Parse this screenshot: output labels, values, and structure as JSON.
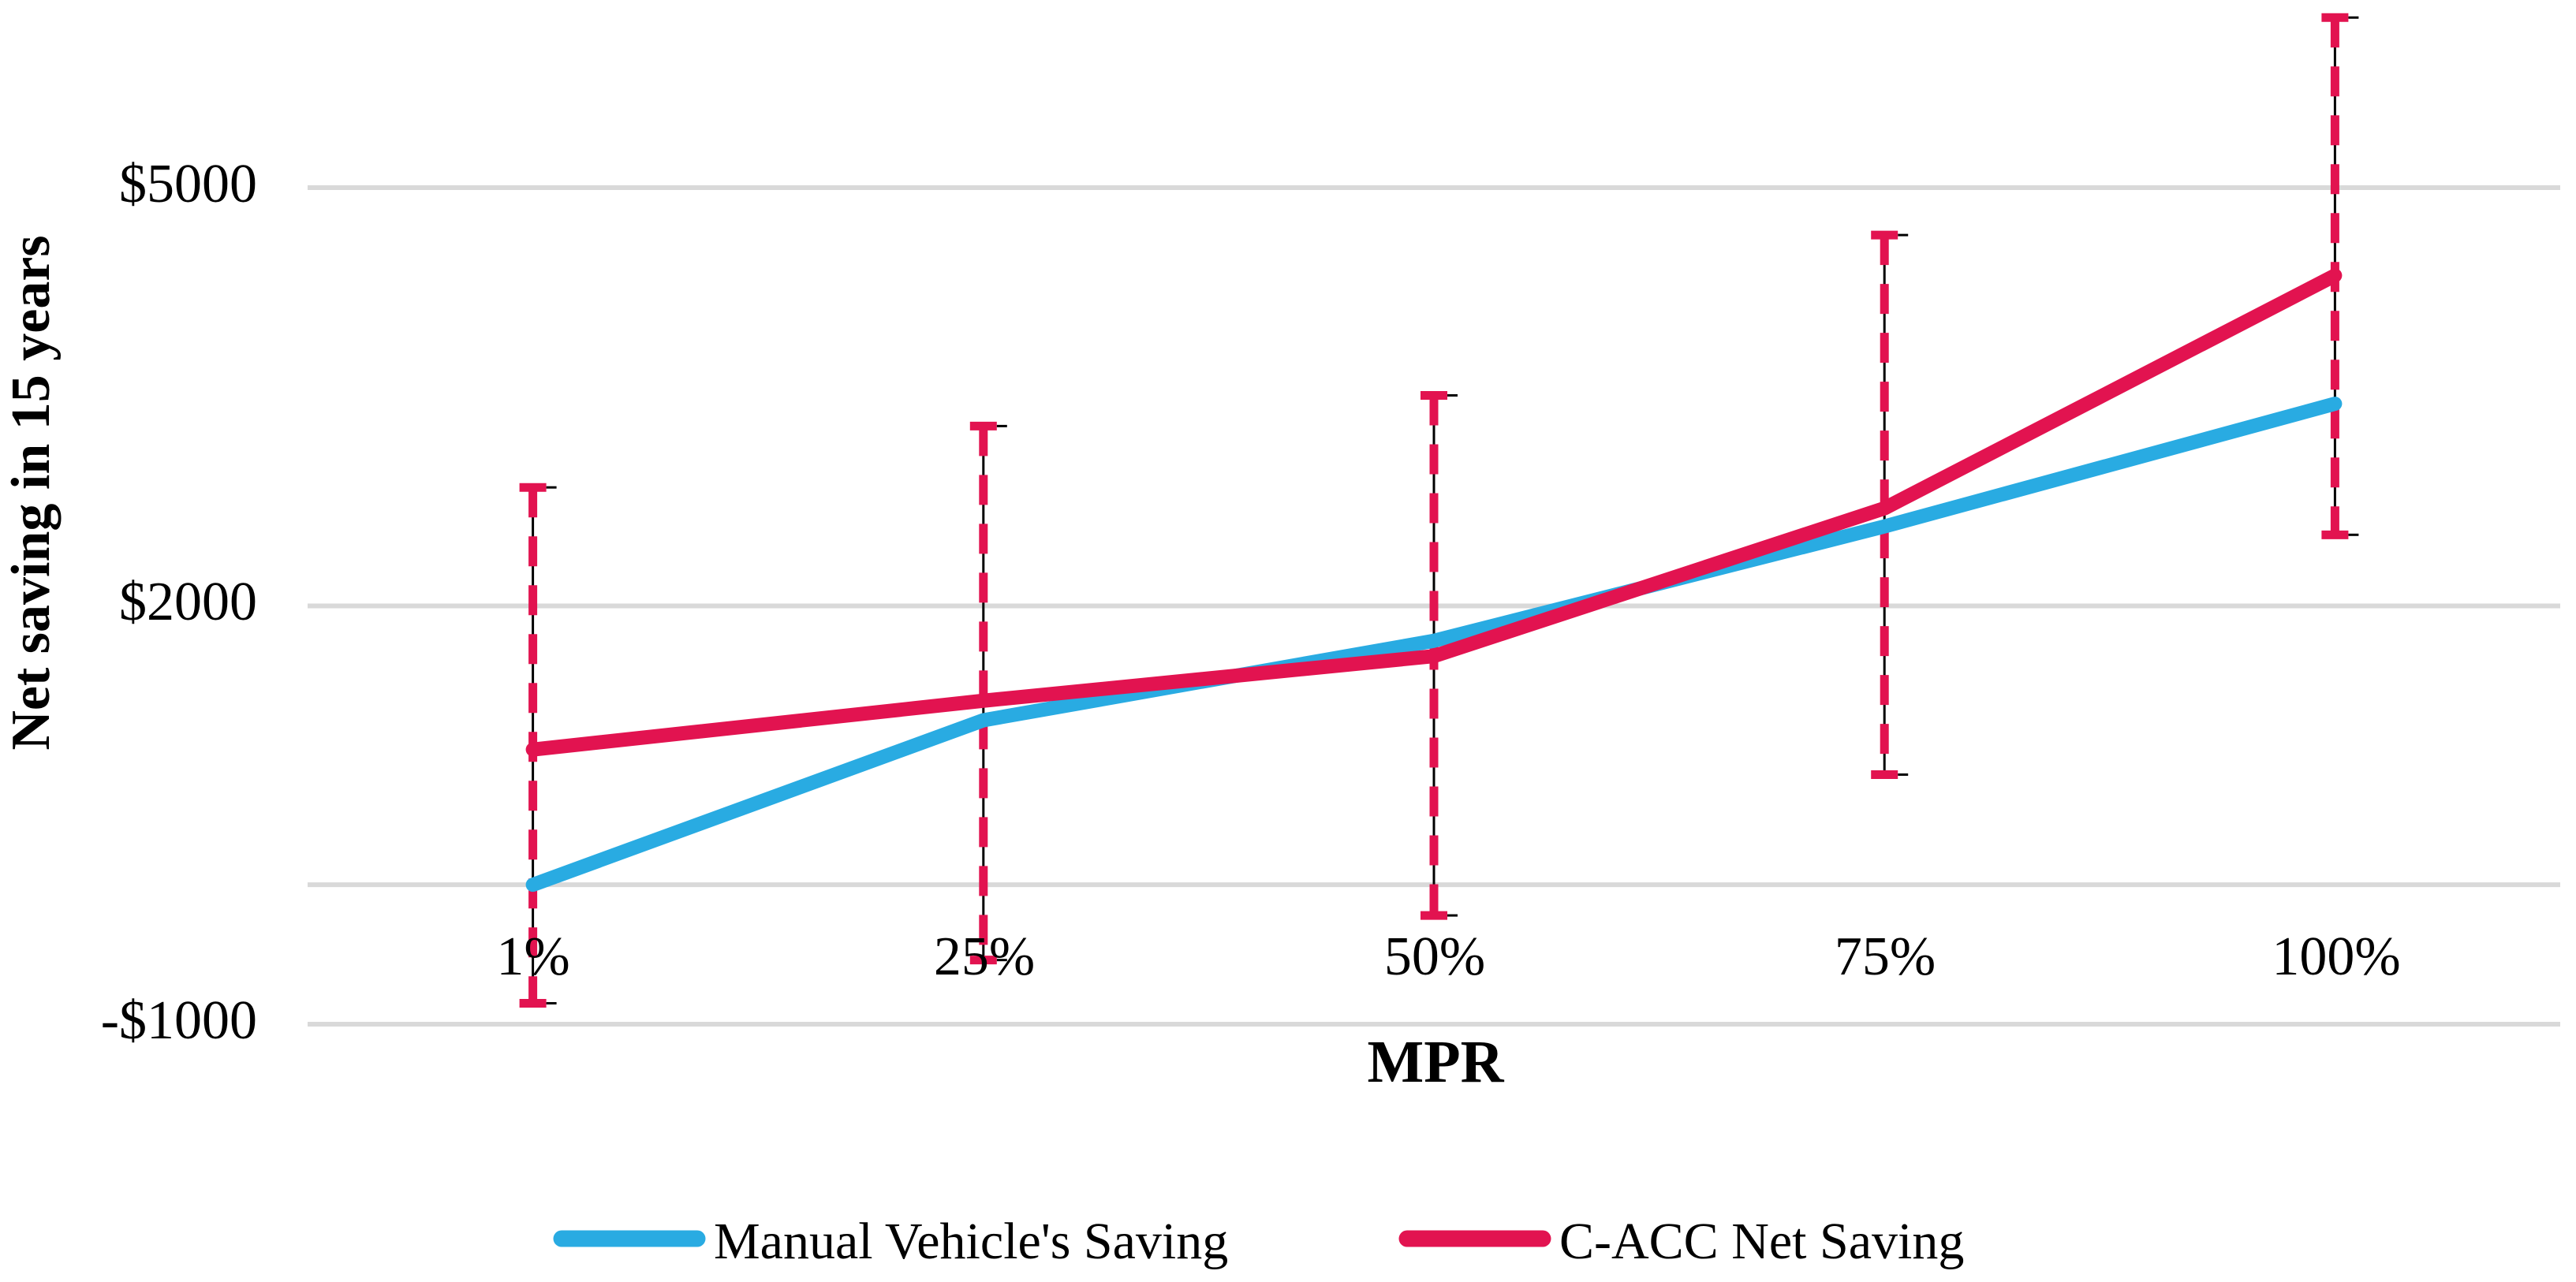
{
  "chart_data": {
    "type": "line",
    "title": "",
    "xlabel": "MPR",
    "ylabel": "Net saving in 15 years",
    "categories": [
      "1%",
      "25%",
      "50%",
      "75%",
      "100%"
    ],
    "series": [
      {
        "name": "Manual Vehicle's Saving",
        "color": "#29ABE2",
        "values": [
          0,
          1180,
          1750,
          2570,
          3450
        ]
      },
      {
        "name": "C-ACC Net Saving",
        "color": "#E21350",
        "values": [
          970,
          1320,
          1640,
          2700,
          4370
        ],
        "error_bars": {
          "upper": [
            2850,
            3290,
            3510,
            4660,
            6220
          ],
          "lower": [
            -850,
            -540,
            -220,
            790,
            2510
          ]
        }
      }
    ],
    "y_ticks": [
      {
        "value": 5000,
        "label": "$5000"
      },
      {
        "value": 2000,
        "label": "$2000"
      },
      {
        "value": -1000,
        "label": "-$1000"
      }
    ],
    "y_axis": {
      "gridline_values": [
        5000,
        2000,
        -1000
      ],
      "zero_line_value": 0
    },
    "grid_color": "#D9D9D9",
    "error_bar_guide_color": "#000000",
    "legend_position": "bottom",
    "grid_on": true
  }
}
